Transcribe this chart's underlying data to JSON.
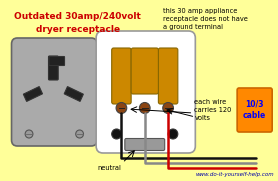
{
  "bg_color": "#FFFF99",
  "title_text": "Outdated 30amp/240volt\ndryer receptacle",
  "title_color": "#CC0000",
  "note_text": "this 30 amp appliance\nreceptacle does not have\na ground terminal",
  "note_color": "#000000",
  "wire_label": "each wire\ncarries 120\nvolts",
  "neutral_label": "neutral",
  "cable_label": "10/3\ncable",
  "cable_color": "#FF8800",
  "cable_text_color": "#0000FF",
  "wire_black": "#111111",
  "wire_red": "#CC0000",
  "wire_gray": "#888888",
  "outlet_gray": "#AAAAAA",
  "outlet_white": "#FFFFFF",
  "prong_color": "#CC8800",
  "screw_color": "#8B4513",
  "bottom_text": "www.do-it-yourself-help.com",
  "bottom_color": "#0000AA"
}
